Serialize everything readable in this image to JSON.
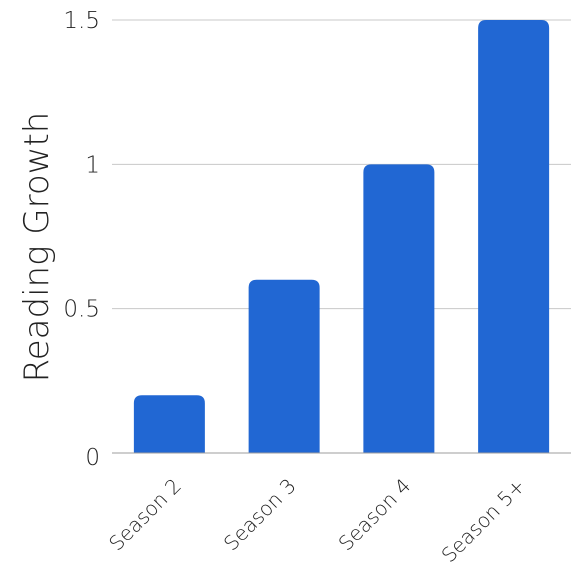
{
  "chart_data": {
    "type": "bar",
    "title": "",
    "xlabel": "",
    "ylabel": "Reading Growth",
    "categories": [
      "Season 2",
      "Season 3",
      "Season 4",
      "Season 5+"
    ],
    "values": [
      0.2,
      0.6,
      1.0,
      1.5
    ],
    "ylim": [
      0,
      1.5
    ],
    "yticks": [
      {
        "value": 0,
        "label": "0"
      },
      {
        "value": 0.5,
        "label": "0.5"
      },
      {
        "value": 1,
        "label": "1"
      },
      {
        "value": 1.5,
        "label": "1.5"
      }
    ],
    "grid": "horizontal",
    "legend": "none",
    "colors": {
      "bar": "#2167D3",
      "grid": "#C8C8C8",
      "axis": "#9E9E9E",
      "text": "#222222"
    }
  }
}
